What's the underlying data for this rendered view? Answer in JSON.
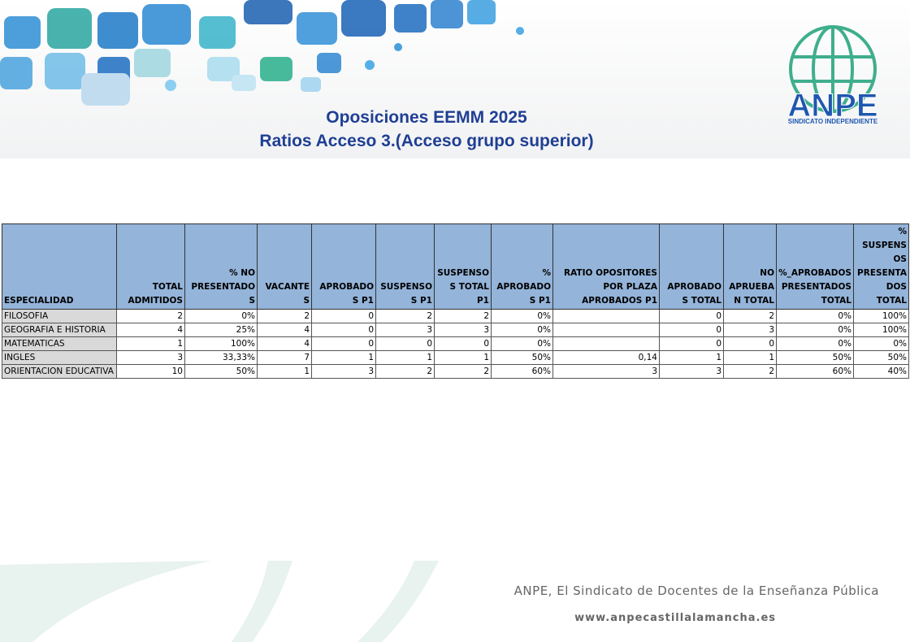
{
  "header": {
    "title_line1": "Oposiciones EEMM 2025",
    "title_line2": "Ratios Acceso 3.(Acceso grupo superior)",
    "logo_text": "ANPE",
    "logo_subtext": "SINDICATO INDEPENDIENTE"
  },
  "table": {
    "columns": [
      "ESPECIALIDAD",
      "TOTAL ADMITIDOS",
      "% NO PRESENTADOS",
      "VACANTES",
      "APROBADOS P1",
      "SUSPENSOS P1",
      "SUSPENSOS TOTAL P1",
      "% APROBADOS P1",
      "RATIO OPOSITORES POR PLAZA APROBADOS P1",
      "APROBADOS TOTAL",
      "NO APRUEBAN TOTAL",
      "%_APROBADOS PRESENTADOS TOTAL",
      "% SUSPENSOS PRESENTADOS TOTAL"
    ],
    "rows": [
      [
        "FILOSOFIA",
        "2",
        "0%",
        "2",
        "0",
        "2",
        "2",
        "0%",
        null,
        "0",
        "2",
        "0%",
        "100%"
      ],
      [
        "GEOGRAFIA E HISTORIA",
        "4",
        "25%",
        "4",
        "0",
        "3",
        "3",
        "0%",
        null,
        "0",
        "3",
        "0%",
        "100%"
      ],
      [
        "MATEMATICAS",
        "1",
        "100%",
        "4",
        "0",
        "0",
        "0",
        "0%",
        null,
        "0",
        "0",
        "0%",
        "0%"
      ],
      [
        "INGLES",
        "3",
        "33,33%",
        "7",
        "1",
        "1",
        "1",
        "50%",
        "0,14",
        "1",
        "1",
        "50%",
        "50%"
      ],
      [
        "ORIENTACION EDUCATIVA",
        "10",
        "50%",
        "1",
        "3",
        "2",
        "2",
        "60%",
        "3",
        "3",
        "2",
        "60%",
        "40%"
      ]
    ]
  },
  "footer": {
    "line1": "ANPE, El Sindicato de Docentes de la Enseñanza Pública",
    "line2": "www.anpecastillalamancha.es"
  }
}
